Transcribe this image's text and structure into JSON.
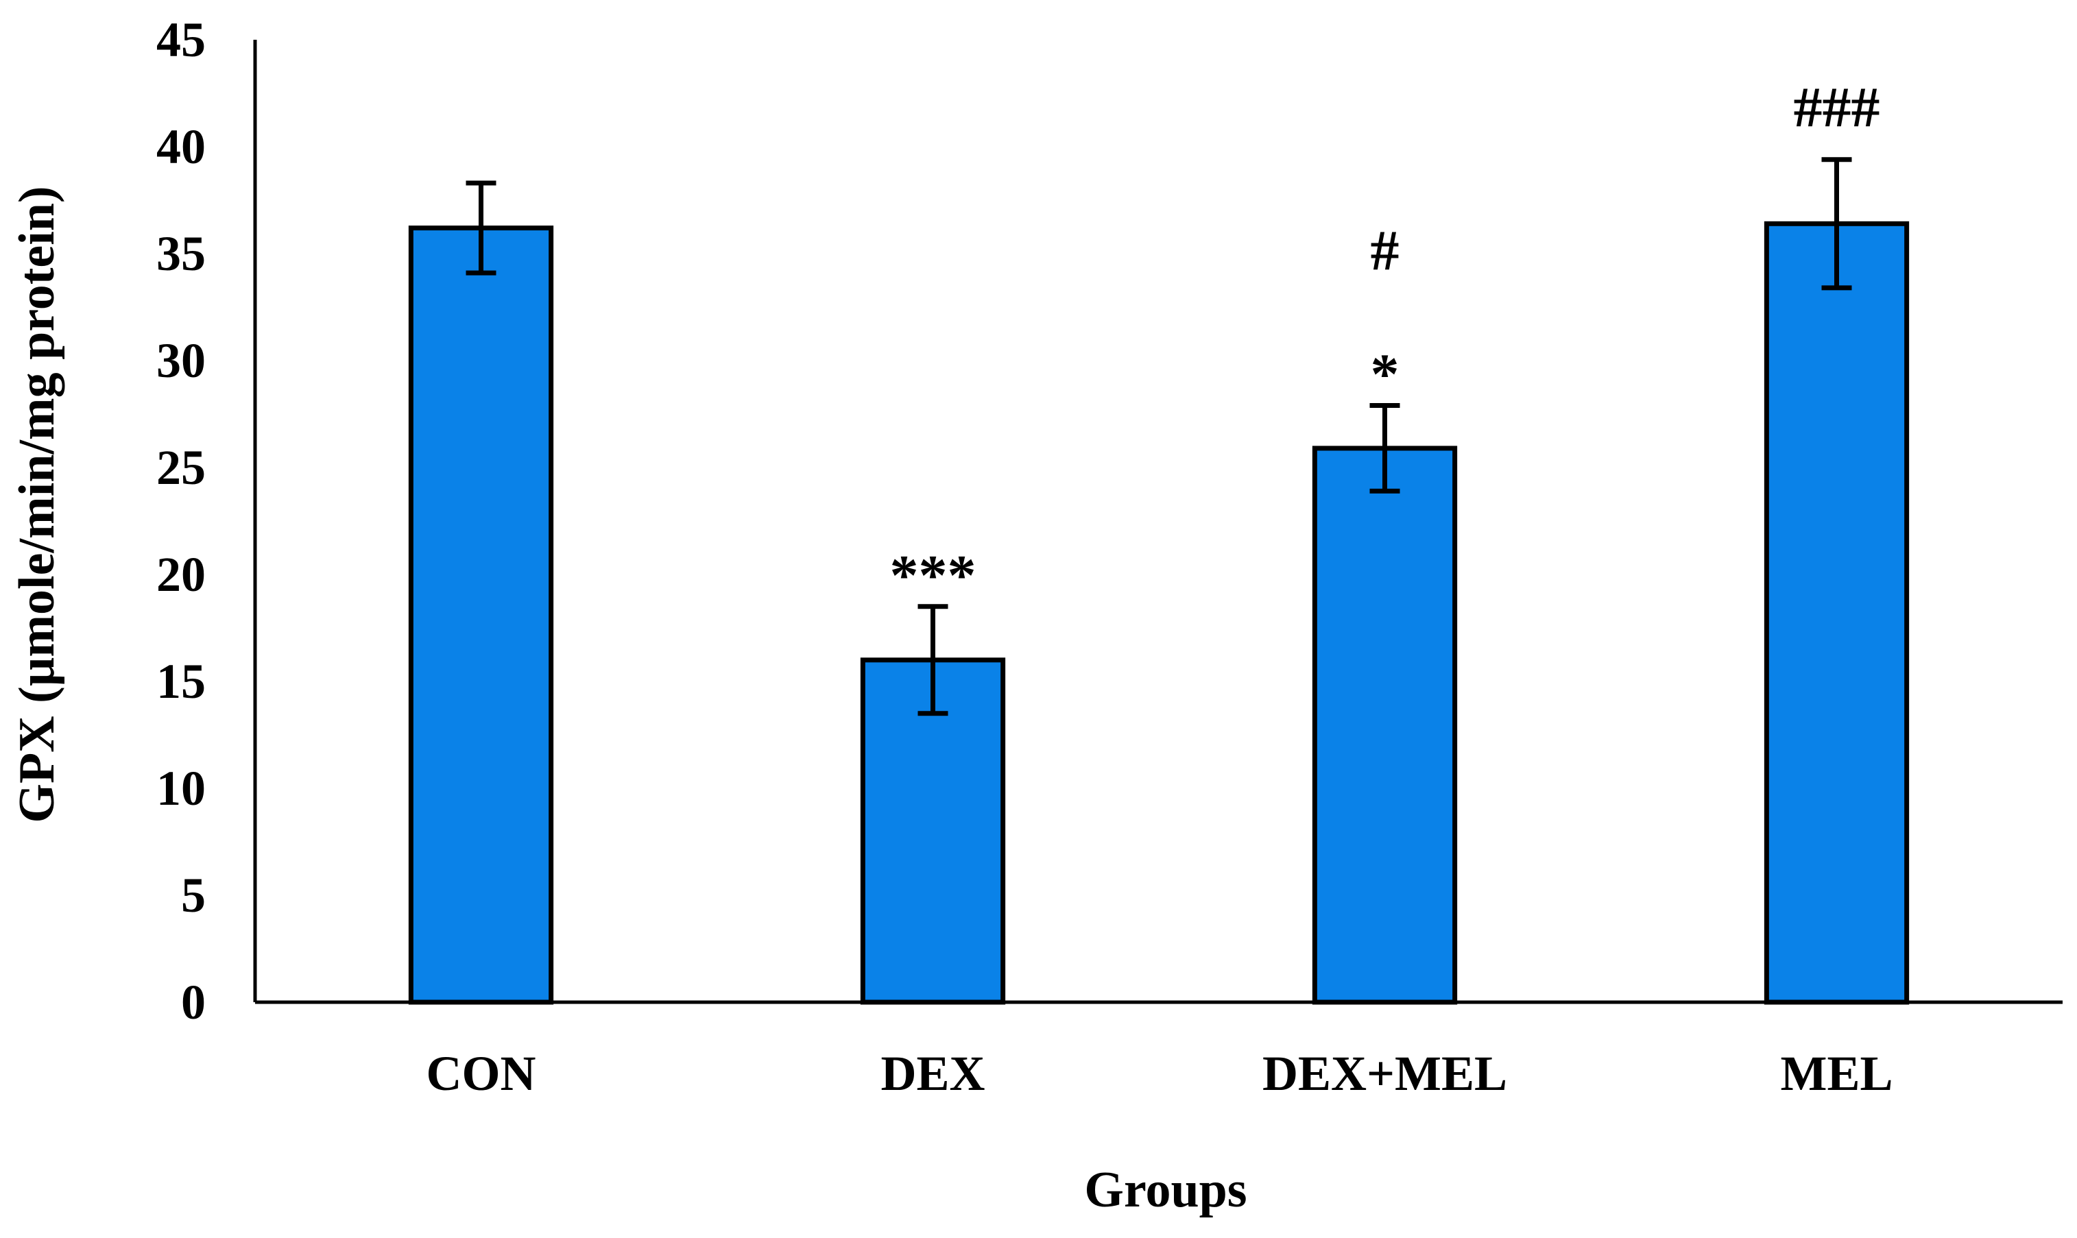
{
  "chart_data": {
    "type": "bar",
    "title": "",
    "xlabel": "Groups",
    "ylabel": "GPX (µmole/min/mg protein)",
    "ylim": [
      0,
      45
    ],
    "yticks": [
      0,
      5,
      10,
      15,
      20,
      25,
      30,
      35,
      40,
      45
    ],
    "grid": false,
    "legend": "none",
    "categories": [
      "CON",
      "DEX",
      "DEX+MEL",
      "MEL"
    ],
    "values": [
      36.2,
      16.0,
      25.9,
      36.4
    ],
    "errors": [
      2.1,
      2.5,
      2.0,
      3.0
    ],
    "annotations": [
      [
        "",
        ""
      ],
      [
        "***",
        ""
      ],
      [
        "*",
        "#"
      ],
      [
        "###",
        ""
      ]
    ],
    "bar_color": "#0a82e8",
    "edge_color": "#000000"
  }
}
